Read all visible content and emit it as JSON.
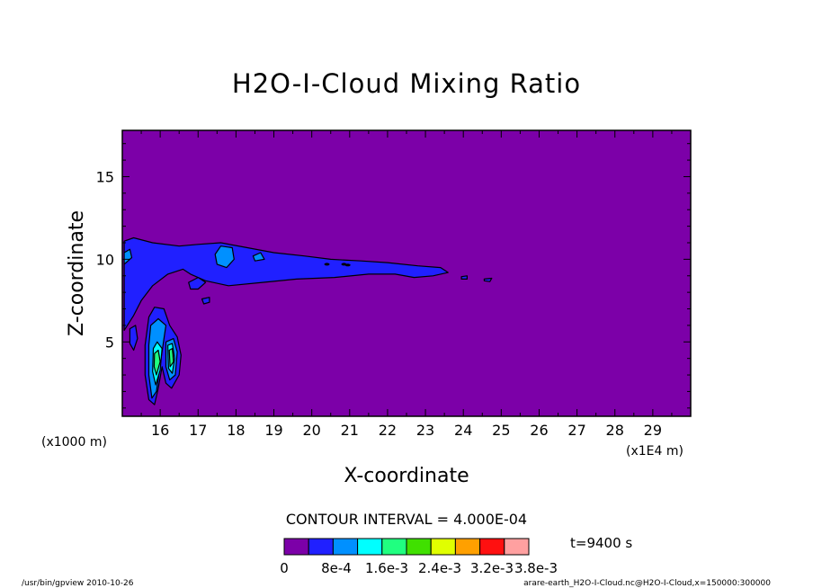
{
  "chart_data": {
    "type": "heatmap",
    "title": "H2O-I-Cloud Mixing Ratio",
    "xlabel": "X-coordinate",
    "ylabel": "Z-coordinate",
    "x_unit_left": "(x1000 m)",
    "x_unit_right": "(x1E4 m)",
    "xlim": [
      15.0,
      30.0
    ],
    "ylim": [
      0.5,
      17.8
    ],
    "x_ticks": [
      "16",
      "17",
      "18",
      "19",
      "20",
      "21",
      "22",
      "23",
      "24",
      "25",
      "26",
      "27",
      "28",
      "29"
    ],
    "x_tick_values": [
      16,
      17,
      18,
      19,
      20,
      21,
      22,
      23,
      24,
      25,
      26,
      27,
      28,
      29
    ],
    "y_ticks": [
      "5",
      "10",
      "15"
    ],
    "y_tick_values": [
      5,
      10,
      15
    ],
    "contour_interval_text": "CONTOUR INTERVAL = 4.000E-04",
    "time_label": "t=9400 s",
    "colorbar": {
      "colors": [
        "#7c00a8",
        "#2020ff",
        "#0090ff",
        "#00ffff",
        "#20ff80",
        "#40e000",
        "#e0ff00",
        "#ffa000",
        "#ff1010",
        "#ffa0a0"
      ],
      "labels": [
        "0",
        "8e-4",
        "1.6e-3",
        "2.4e-3",
        "3.2e-3",
        "3.8e-3"
      ],
      "label_values": [
        0,
        0.0008,
        0.0016,
        0.0024,
        0.0032,
        0.0038
      ]
    },
    "background_color": "#7c00a8",
    "cloud_regions": [
      {
        "level": 1,
        "color": "#2020ff",
        "points": [
          [
            15.05,
            11.1
          ],
          [
            15.3,
            11.3
          ],
          [
            15.8,
            11.0
          ],
          [
            16.5,
            10.8
          ],
          [
            17.0,
            10.9
          ],
          [
            17.6,
            11.0
          ],
          [
            18.3,
            10.7
          ],
          [
            19.0,
            10.4
          ],
          [
            19.8,
            10.2
          ],
          [
            20.5,
            10.0
          ],
          [
            21.3,
            9.9
          ],
          [
            22.0,
            9.8
          ],
          [
            22.8,
            9.6
          ],
          [
            23.4,
            9.5
          ],
          [
            23.6,
            9.2
          ],
          [
            23.2,
            9.0
          ],
          [
            22.7,
            8.9
          ],
          [
            22.2,
            9.1
          ],
          [
            21.5,
            9.1
          ],
          [
            20.6,
            8.9
          ],
          [
            19.6,
            8.8
          ],
          [
            18.7,
            8.6
          ],
          [
            17.8,
            8.4
          ],
          [
            17.2,
            8.7
          ],
          [
            16.8,
            9.1
          ],
          [
            16.6,
            9.4
          ],
          [
            16.2,
            9.1
          ],
          [
            15.8,
            8.4
          ],
          [
            15.5,
            7.5
          ],
          [
            15.3,
            6.6
          ],
          [
            15.05,
            5.7
          ]
        ]
      },
      {
        "level": 1,
        "color": "#2020ff",
        "points": [
          [
            15.7,
            6.5
          ],
          [
            15.85,
            7.1
          ],
          [
            16.1,
            7.0
          ],
          [
            16.25,
            6.0
          ],
          [
            16.45,
            5.3
          ],
          [
            16.55,
            4.2
          ],
          [
            16.5,
            3.0
          ],
          [
            16.3,
            2.2
          ],
          [
            16.15,
            2.5
          ],
          [
            16.05,
            3.5
          ],
          [
            15.95,
            2.2
          ],
          [
            15.85,
            1.2
          ],
          [
            15.7,
            1.5
          ],
          [
            15.6,
            3.0
          ],
          [
            15.6,
            4.8
          ]
        ]
      },
      {
        "level": 1,
        "color": "#2020ff",
        "points": [
          [
            15.2,
            5.8
          ],
          [
            15.35,
            6.0
          ],
          [
            15.4,
            5.2
          ],
          [
            15.3,
            4.5
          ],
          [
            15.2,
            4.9
          ]
        ]
      },
      {
        "level": 1,
        "color": "#2020ff",
        "points": [
          [
            16.75,
            8.6
          ],
          [
            17.0,
            8.9
          ],
          [
            17.2,
            8.6
          ],
          [
            17.0,
            8.2
          ],
          [
            16.8,
            8.2
          ]
        ]
      },
      {
        "level": 1,
        "color": "#2020ff",
        "points": [
          [
            17.1,
            7.6
          ],
          [
            17.3,
            7.7
          ],
          [
            17.3,
            7.4
          ],
          [
            17.15,
            7.3
          ]
        ]
      },
      {
        "level": 1,
        "color": "#2020ff",
        "points": [
          [
            23.95,
            8.95
          ],
          [
            24.1,
            9.0
          ],
          [
            24.1,
            8.8
          ],
          [
            23.95,
            8.8
          ]
        ]
      },
      {
        "level": 1,
        "color": "#2020ff",
        "points": [
          [
            24.55,
            8.8
          ],
          [
            24.75,
            8.85
          ],
          [
            24.7,
            8.65
          ],
          [
            24.55,
            8.7
          ]
        ]
      },
      {
        "level": 2,
        "color": "#0090ff",
        "points": [
          [
            17.45,
            10.3
          ],
          [
            17.6,
            10.8
          ],
          [
            17.9,
            10.7
          ],
          [
            17.95,
            10.0
          ],
          [
            17.75,
            9.5
          ],
          [
            17.5,
            9.7
          ]
        ]
      },
      {
        "level": 2,
        "color": "#0090ff",
        "points": [
          [
            18.45,
            10.2
          ],
          [
            18.65,
            10.4
          ],
          [
            18.75,
            10.0
          ],
          [
            18.5,
            9.9
          ]
        ]
      },
      {
        "level": 2,
        "color": "#0090ff",
        "points": [
          [
            15.05,
            10.4
          ],
          [
            15.2,
            10.6
          ],
          [
            15.25,
            10.1
          ],
          [
            15.05,
            9.7
          ]
        ]
      },
      {
        "level": 2,
        "color": "#0090ff",
        "points": [
          [
            15.75,
            6.0
          ],
          [
            15.95,
            6.4
          ],
          [
            16.15,
            6.0
          ],
          [
            16.1,
            5.2
          ],
          [
            16.0,
            3.6
          ],
          [
            15.9,
            2.0
          ],
          [
            15.78,
            1.6
          ],
          [
            15.7,
            3.0
          ],
          [
            15.7,
            4.8
          ]
        ]
      },
      {
        "level": 2,
        "color": "#0090ff",
        "points": [
          [
            16.15,
            5.0
          ],
          [
            16.35,
            5.2
          ],
          [
            16.45,
            4.4
          ],
          [
            16.4,
            3.0
          ],
          [
            16.25,
            2.7
          ],
          [
            16.15,
            3.5
          ]
        ]
      },
      {
        "level": 3,
        "color": "#00ffff",
        "points": [
          [
            15.82,
            4.6
          ],
          [
            15.92,
            5.0
          ],
          [
            16.05,
            4.6
          ],
          [
            16.0,
            3.3
          ],
          [
            15.88,
            2.4
          ],
          [
            15.8,
            3.2
          ]
        ]
      },
      {
        "level": 3,
        "color": "#00ffff",
        "points": [
          [
            16.2,
            4.8
          ],
          [
            16.32,
            4.9
          ],
          [
            16.38,
            4.0
          ],
          [
            16.32,
            3.1
          ],
          [
            16.22,
            3.4
          ]
        ]
      },
      {
        "level": 4,
        "color": "#20ff80",
        "points": [
          [
            15.85,
            4.3
          ],
          [
            15.95,
            4.5
          ],
          [
            16.0,
            3.8
          ],
          [
            15.9,
            3.0
          ],
          [
            15.84,
            3.5
          ]
        ]
      },
      {
        "level": 4,
        "color": "#20ff80",
        "points": [
          [
            16.24,
            4.5
          ],
          [
            16.32,
            4.6
          ],
          [
            16.35,
            3.8
          ],
          [
            16.26,
            3.5
          ]
        ]
      }
    ],
    "contour_marks": [
      {
        "x": 20.4,
        "y": 9.7
      },
      {
        "x": 20.85,
        "y": 9.7
      },
      {
        "x": 20.95,
        "y": 9.65
      }
    ]
  },
  "footer": {
    "left": "/usr/bin/gpview   2010-10-26",
    "right": "arare-earth_H2O-I-Cloud.nc@H2O-I-Cloud,x=150000:300000"
  }
}
